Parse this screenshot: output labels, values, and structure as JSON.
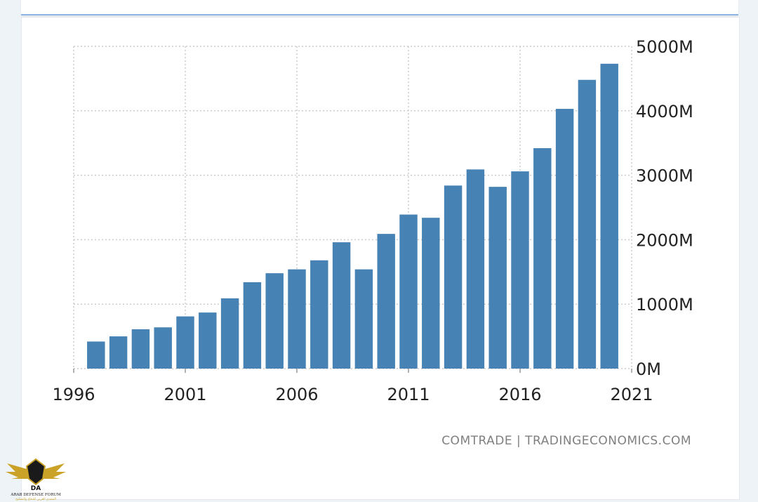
{
  "source": "COMTRADE | TRADINGECONOMICS.COM",
  "logo": {
    "mark": "DA",
    "name": "ARAB DEFENSE FORUM",
    "subtitle": "المنتدى العربي للدفاع والتسليح"
  },
  "colors": {
    "bar": "#4682b4",
    "grid": "#cccccc",
    "axis_text": "#222222"
  },
  "chart_data": {
    "type": "bar",
    "x_ticks": [
      "1996",
      "2001",
      "2006",
      "2011",
      "2016",
      "2021"
    ],
    "y_ticks": [
      "0M",
      "1000M",
      "2000M",
      "3000M",
      "4000M",
      "5000M"
    ],
    "xlim": [
      1996,
      2021
    ],
    "ylim": [
      0,
      5000
    ],
    "categories": [
      1997,
      1998,
      1999,
      2000,
      2001,
      2002,
      2003,
      2004,
      2005,
      2006,
      2007,
      2008,
      2009,
      2010,
      2011,
      2012,
      2013,
      2014,
      2015,
      2016,
      2017,
      2018,
      2019,
      2020
    ],
    "values": [
      420,
      500,
      610,
      640,
      810,
      870,
      1090,
      1340,
      1480,
      1540,
      1680,
      1960,
      1540,
      2090,
      2390,
      2340,
      2840,
      3090,
      2820,
      3060,
      3420,
      4030,
      4480,
      4730
    ],
    "grid": true,
    "y_axis_side": "right"
  }
}
